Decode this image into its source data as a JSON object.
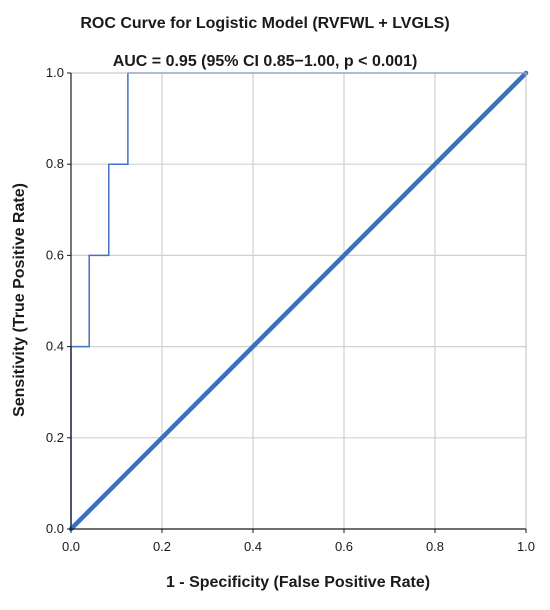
{
  "chart_data": {
    "type": "line",
    "title": "ROC Curve for Logistic Model (RVFWL + LVGLS)",
    "subtitle": "AUC = 0.95 (95% CI 0.85−1.00, p < 0.001)",
    "xlabel": "1 - Specificity (False Positive Rate)",
    "ylabel": "Sensitivity (True Positive Rate)",
    "xlim": [
      0,
      1
    ],
    "ylim": [
      0,
      1
    ],
    "x_ticks": [
      "0.0",
      "0.2",
      "0.4",
      "0.6",
      "0.8",
      "1.0"
    ],
    "y_ticks": [
      "0.0",
      "0.2",
      "0.4",
      "0.6",
      "0.8",
      "1.0"
    ],
    "grid": true,
    "legend": "none",
    "series": [
      {
        "style": "step",
        "color": "#4472c4",
        "x": [
          0,
          0,
          0.04,
          0.04,
          0.083,
          0.083,
          0.125,
          0.125,
          1
        ],
        "y": [
          0,
          0.4,
          0.4,
          0.6,
          0.6,
          0.8,
          0.8,
          1.0,
          1.0
        ]
      },
      {
        "style": "reference-diagonal",
        "color": "#3a6fc1",
        "x": [
          0,
          1
        ],
        "y": [
          0,
          1
        ]
      }
    ]
  }
}
